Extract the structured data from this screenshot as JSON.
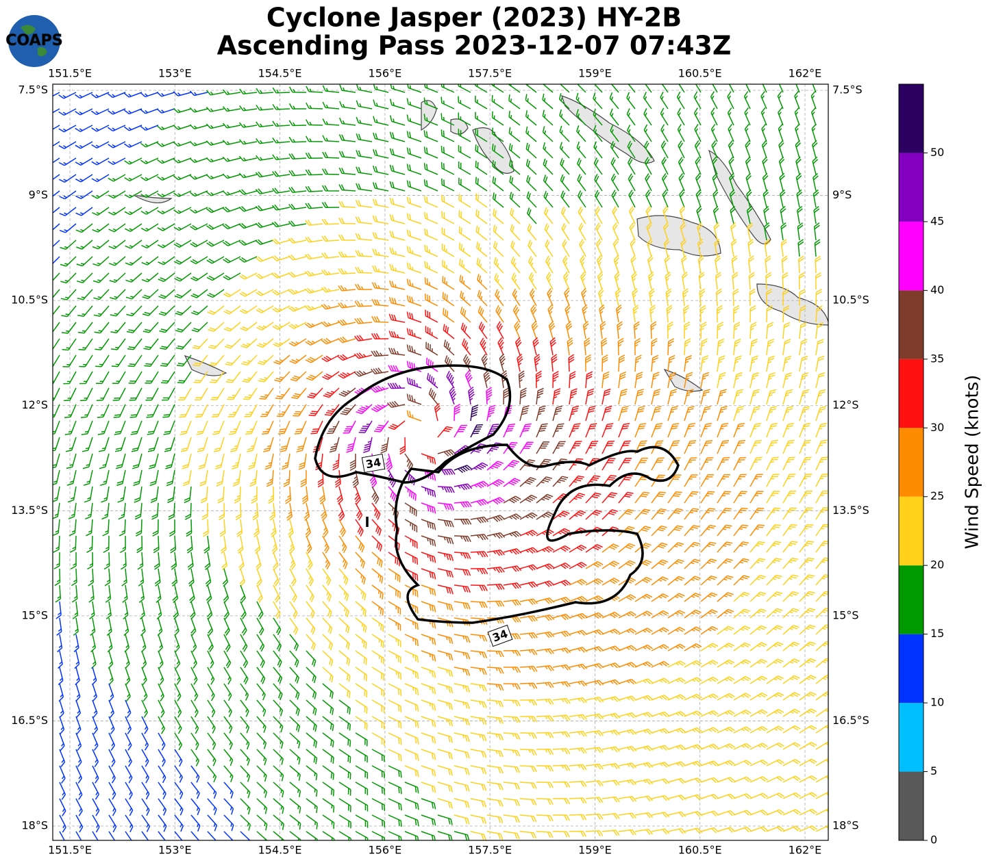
{
  "title": [
    "Cyclone Jasper (2023) HY-2B",
    "Ascending Pass 2023-12-07 07:43Z"
  ],
  "logo": "COAPS",
  "map": {
    "lonlim": [
      151.255,
      162.333
    ],
    "latlim": [
      -18.205,
      -7.412
    ],
    "lon_ticks": [
      {
        "value": 151.5,
        "label": "151.5°E"
      },
      {
        "value": 153,
        "label": "153°E"
      },
      {
        "value": 154.5,
        "label": "154.5°E"
      },
      {
        "value": 156,
        "label": "156°E"
      },
      {
        "value": 157.5,
        "label": "157.5°E"
      },
      {
        "value": 159,
        "label": "159°E"
      },
      {
        "value": 160.5,
        "label": "160.5°E"
      },
      {
        "value": 162,
        "label": "162°E"
      }
    ],
    "lat_ticks": [
      {
        "value": -7.5,
        "label": "7.5°S"
      },
      {
        "value": -9,
        "label": "9°S"
      },
      {
        "value": -10.5,
        "label": "10.5°S"
      },
      {
        "value": -12,
        "label": "12°S"
      },
      {
        "value": -13.5,
        "label": "13.5°S"
      },
      {
        "value": -15,
        "label": "15°S"
      },
      {
        "value": -16.5,
        "label": "16.5°S"
      },
      {
        "value": -18,
        "label": "18°S"
      }
    ],
    "grid": true
  },
  "contour_labels": [
    34,
    34
  ],
  "colorbar": {
    "label": "Wind Speed (knots)",
    "bounds": [
      0,
      5,
      10,
      15,
      20,
      25,
      30,
      35,
      40,
      45,
      50,
      55
    ],
    "colors": [
      "#595959",
      "#00bfff",
      "#0033ff",
      "#009900",
      "#ffd11a",
      "#ff8c00",
      "#ff1111",
      "#7f3b2a",
      "#ff00ff",
      "#8400c0",
      "#2b0060"
    ],
    "ticks": [
      0,
      5,
      10,
      15,
      20,
      25,
      30,
      35,
      40,
      45,
      50
    ]
  }
}
